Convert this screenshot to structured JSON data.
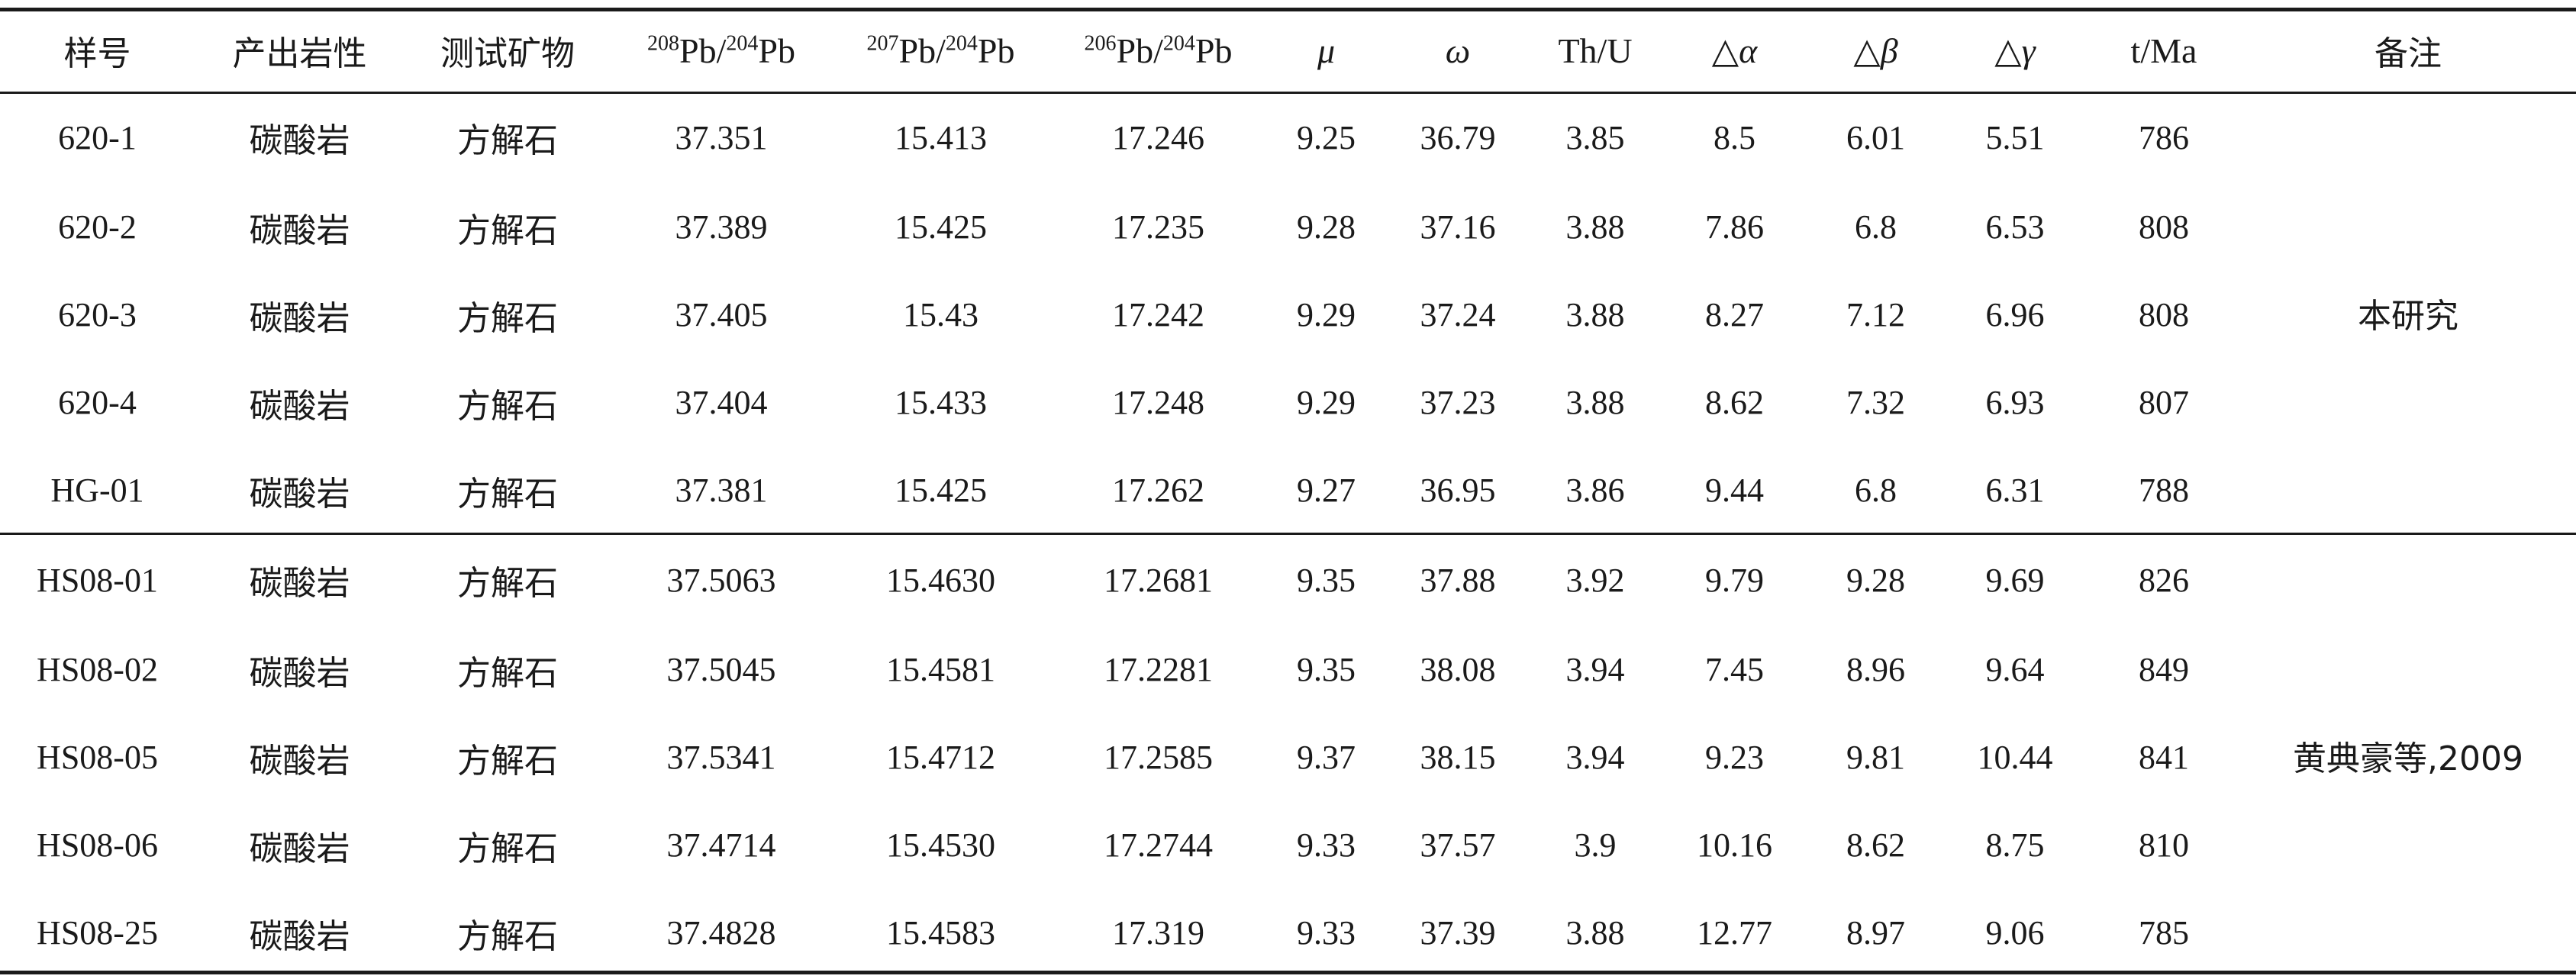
{
  "headers": {
    "sample": "样号",
    "lithology": "产出岩性",
    "mineral": "测试矿物",
    "pb208_204": {
      "a": "208",
      "b": "Pb/",
      "c": "204",
      "d": "Pb"
    },
    "pb207_204": {
      "a": "207",
      "b": "Pb/",
      "c": "204",
      "d": "Pb"
    },
    "pb206_204": {
      "a": "206",
      "b": "Pb/",
      "c": "204",
      "d": "Pb"
    },
    "mu": "μ",
    "omega": "ω",
    "thu": "Th/U",
    "dalpha": {
      "tri": "△",
      "sym": "α"
    },
    "dbeta": {
      "tri": "△",
      "sym": "β"
    },
    "dgamma": {
      "tri": "△",
      "sym": "γ"
    },
    "age": "t/Ma",
    "note": "备注"
  },
  "rows": [
    {
      "sample": "620-1",
      "lithology": "碳酸岩",
      "mineral": "方解石",
      "pb208": "37.351",
      "pb207": "15.413",
      "pb206": "17.246",
      "mu": "9.25",
      "omega": "36.79",
      "thu": "3.85",
      "da": "8.5",
      "db": "6.01",
      "dg": "5.51",
      "age": "786"
    },
    {
      "sample": "620-2",
      "lithology": "碳酸岩",
      "mineral": "方解石",
      "pb208": "37.389",
      "pb207": "15.425",
      "pb206": "17.235",
      "mu": "9.28",
      "omega": "37.16",
      "thu": "3.88",
      "da": "7.86",
      "db": "6.8",
      "dg": "6.53",
      "age": "808"
    },
    {
      "sample": "620-3",
      "lithology": "碳酸岩",
      "mineral": "方解石",
      "pb208": "37.405",
      "pb207": "15.43",
      "pb206": "17.242",
      "mu": "9.29",
      "omega": "37.24",
      "thu": "3.88",
      "da": "8.27",
      "db": "7.12",
      "dg": "6.96",
      "age": "808"
    },
    {
      "sample": "620-4",
      "lithology": "碳酸岩",
      "mineral": "方解石",
      "pb208": "37.404",
      "pb207": "15.433",
      "pb206": "17.248",
      "mu": "9.29",
      "omega": "37.23",
      "thu": "3.88",
      "da": "8.62",
      "db": "7.32",
      "dg": "6.93",
      "age": "807"
    },
    {
      "sample": "HG-01",
      "lithology": "碳酸岩",
      "mineral": "方解石",
      "pb208": "37.381",
      "pb207": "15.425",
      "pb206": "17.262",
      "mu": "9.27",
      "omega": "36.95",
      "thu": "3.86",
      "da": "9.44",
      "db": "6.8",
      "dg": "6.31",
      "age": "788"
    },
    {
      "sample": "HS08-01",
      "lithology": "碳酸岩",
      "mineral": "方解石",
      "pb208": "37.5063",
      "pb207": "15.4630",
      "pb206": "17.2681",
      "mu": "9.35",
      "omega": "37.88",
      "thu": "3.92",
      "da": "9.79",
      "db": "9.28",
      "dg": "9.69",
      "age": "826"
    },
    {
      "sample": "HS08-02",
      "lithology": "碳酸岩",
      "mineral": "方解石",
      "pb208": "37.5045",
      "pb207": "15.4581",
      "pb206": "17.2281",
      "mu": "9.35",
      "omega": "38.08",
      "thu": "3.94",
      "da": "7.45",
      "db": "8.96",
      "dg": "9.64",
      "age": "849"
    },
    {
      "sample": "HS08-05",
      "lithology": "碳酸岩",
      "mineral": "方解石",
      "pb208": "37.5341",
      "pb207": "15.4712",
      "pb206": "17.2585",
      "mu": "9.37",
      "omega": "38.15",
      "thu": "3.94",
      "da": "9.23",
      "db": "9.81",
      "dg": "10.44",
      "age": "841"
    },
    {
      "sample": "HS08-06",
      "lithology": "碳酸岩",
      "mineral": "方解石",
      "pb208": "37.4714",
      "pb207": "15.4530",
      "pb206": "17.2744",
      "mu": "9.33",
      "omega": "37.57",
      "thu": "3.9",
      "da": "10.16",
      "db": "8.62",
      "dg": "8.75",
      "age": "810"
    },
    {
      "sample": "HS08-25",
      "lithology": "碳酸岩",
      "mineral": "方解石",
      "pb208": "37.4828",
      "pb207": "15.4583",
      "pb206": "17.319",
      "mu": "9.33",
      "omega": "37.39",
      "thu": "3.88",
      "da": "12.77",
      "db": "8.97",
      "dg": "9.06",
      "age": "785"
    }
  ],
  "notes": {
    "group1": "本研究",
    "group2": "黄典豪等,2009"
  }
}
